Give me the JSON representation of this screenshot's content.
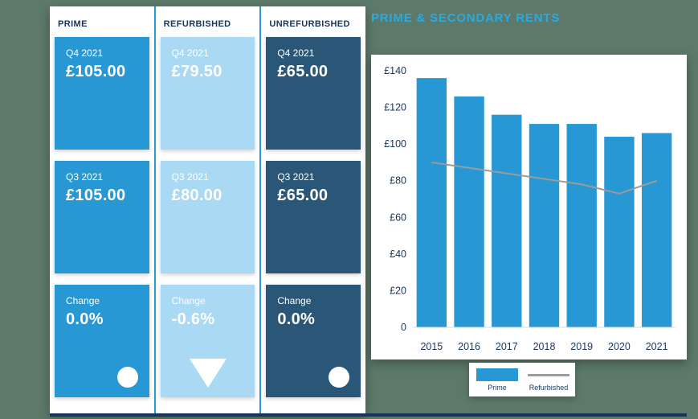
{
  "colors": {
    "background": "#5c7969",
    "prime": "#2798d4",
    "refurbished": "#a9d9f3",
    "unrefurbished": "#2a5777",
    "navy_text": "#17365c",
    "title_blue": "#29abe2",
    "line_gray": "#9b9b9b"
  },
  "columns": [
    {
      "header": "PRIME",
      "cards": [
        {
          "label": "Q4 2021",
          "value": "£105.00"
        },
        {
          "label": "Q3 2021",
          "value": "£105.00"
        },
        {
          "label": "Change",
          "value": "0.0%",
          "indicator": "circle"
        }
      ]
    },
    {
      "header": "REFURBISHED",
      "cards": [
        {
          "label": "Q4 2021",
          "value": "£79.50"
        },
        {
          "label": "Q3 2021",
          "value": "£80.00"
        },
        {
          "label": "Change",
          "value": "-0.6%",
          "indicator": "triangle-down"
        }
      ]
    },
    {
      "header": "UNREFURBISHED",
      "cards": [
        {
          "label": "Q4 2021",
          "value": "£65.00"
        },
        {
          "label": "Q3 2021",
          "value": "£65.00"
        },
        {
          "label": "Change",
          "value": "0.0%",
          "indicator": "circle"
        }
      ]
    }
  ],
  "chart_data": {
    "type": "bar",
    "title": "PRIME & SECONDARY RENTS",
    "categories": [
      "2015",
      "2016",
      "2017",
      "2018",
      "2019",
      "2020",
      "2021"
    ],
    "series": [
      {
        "name": "Prime",
        "type": "bar",
        "values": [
          136,
          126,
          116,
          111,
          111,
          104,
          106
        ]
      },
      {
        "name": "Refurbished",
        "type": "line",
        "values": [
          90,
          87,
          84,
          81,
          78,
          73,
          80
        ]
      }
    ],
    "xlabel": "",
    "ylabel": "",
    "ylim": [
      0,
      140
    ],
    "ytick_values": [
      0,
      20,
      40,
      60,
      80,
      100,
      120,
      140
    ],
    "ytick_labels": [
      "0",
      "£20",
      "£40",
      "£60",
      "£80",
      "£100",
      "£120",
      "£140"
    ],
    "grid": false,
    "legend_position": "bottom"
  },
  "legend": {
    "prime_label": "Prime",
    "refurbished_label": "Refurbished"
  }
}
